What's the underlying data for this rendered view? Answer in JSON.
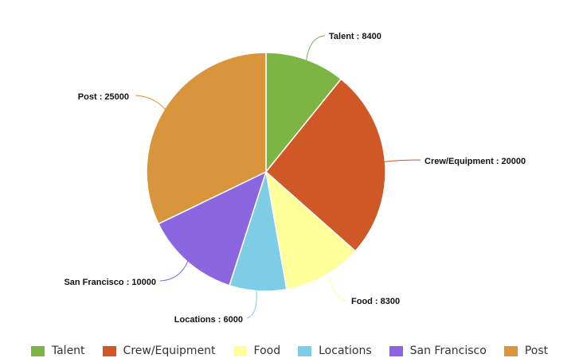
{
  "chart_data": {
    "type": "pie",
    "title": "",
    "legend_position": "bottom",
    "slices": [
      {
        "label": "Talent",
        "value": 8400,
        "display": "Talent : 8400",
        "color": "#7cb544"
      },
      {
        "label": "Crew/Equipment",
        "value": 20000,
        "display": "Crew/Equipment : 20000",
        "color": "#d05726"
      },
      {
        "label": "Food",
        "value": 8300,
        "display": "Food : 8300",
        "color": "#ffff99"
      },
      {
        "label": "Locations",
        "value": 6000,
        "display": "Locations : 6000",
        "color": "#7dcde6"
      },
      {
        "label": "San Francisco",
        "value": 10000,
        "display": "San Francisco : 10000",
        "color": "#8b66e0"
      },
      {
        "label": "Post",
        "value": 25000,
        "display": "Post : 25000",
        "color": "#d9953c"
      }
    ]
  }
}
